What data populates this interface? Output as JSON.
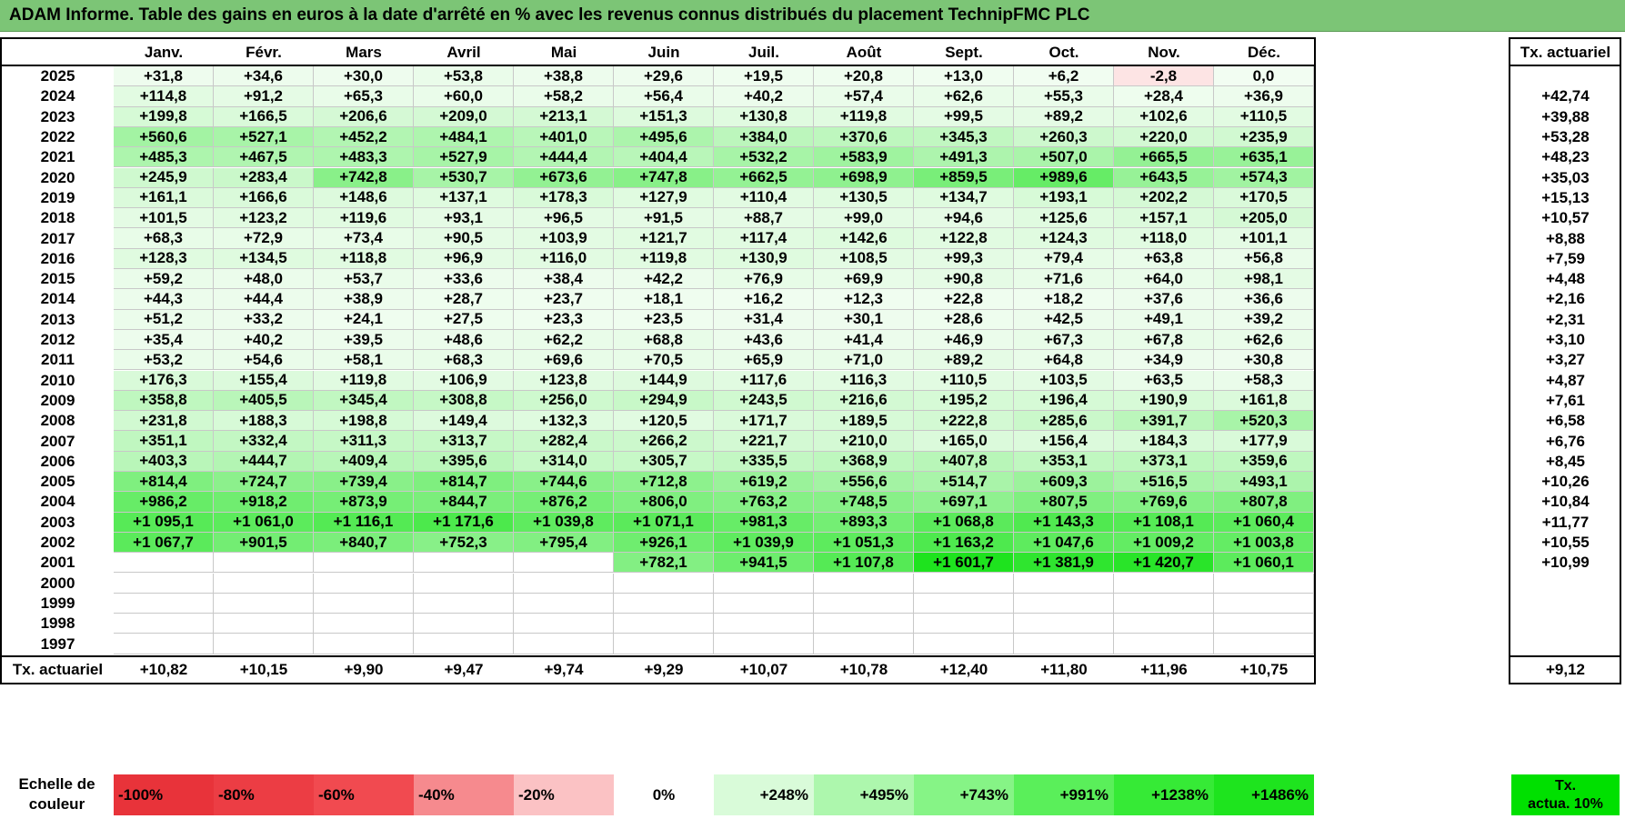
{
  "title": "ADAM Informe. Table des gains en euros à la date d'arrêté en % avec les revenus connus distribués du placement TechnipFMC PLC",
  "months": [
    "Janv.",
    "Févr.",
    "Mars",
    "Avril",
    "Mai",
    "Juin",
    "Juil.",
    "Août",
    "Sept.",
    "Oct.",
    "Nov.",
    "Déc."
  ],
  "annual_header": "Tx. actuariel",
  "rows": [
    {
      "year": "2025",
      "cells": [
        "+31,8",
        "+34,6",
        "+30,0",
        "+53,8",
        "+38,8",
        "+29,6",
        "+19,5",
        "+20,8",
        "+13,0",
        "+6,2",
        "-2,8",
        "0,0"
      ],
      "annual": ""
    },
    {
      "year": "2024",
      "cells": [
        "+114,8",
        "+91,2",
        "+65,3",
        "+60,0",
        "+58,2",
        "+56,4",
        "+40,2",
        "+57,4",
        "+62,6",
        "+55,3",
        "+28,4",
        "+36,9"
      ],
      "annual": "+42,74"
    },
    {
      "year": "2023",
      "cells": [
        "+199,8",
        "+166,5",
        "+206,6",
        "+209,0",
        "+213,1",
        "+151,3",
        "+130,8",
        "+119,8",
        "+99,5",
        "+89,2",
        "+102,6",
        "+110,5"
      ],
      "annual": "+39,88"
    },
    {
      "year": "2022",
      "cells": [
        "+560,6",
        "+527,1",
        "+452,2",
        "+484,1",
        "+401,0",
        "+495,6",
        "+384,0",
        "+370,6",
        "+345,3",
        "+260,3",
        "+220,0",
        "+235,9"
      ],
      "annual": "+53,28"
    },
    {
      "year": "2021",
      "cells": [
        "+485,3",
        "+467,5",
        "+483,3",
        "+527,9",
        "+444,4",
        "+404,4",
        "+532,2",
        "+583,9",
        "+491,3",
        "+507,0",
        "+665,5",
        "+635,1"
      ],
      "annual": "+48,23"
    },
    {
      "year": "2020",
      "cells": [
        "+245,9",
        "+283,4",
        "+742,8",
        "+530,7",
        "+673,6",
        "+747,8",
        "+662,5",
        "+698,9",
        "+859,5",
        "+989,6",
        "+643,5",
        "+574,3"
      ],
      "annual": "+35,03"
    },
    {
      "year": "2019",
      "cells": [
        "+161,1",
        "+166,6",
        "+148,6",
        "+137,1",
        "+178,3",
        "+127,9",
        "+110,4",
        "+130,5",
        "+134,7",
        "+193,1",
        "+202,2",
        "+170,5"
      ],
      "annual": "+15,13"
    },
    {
      "year": "2018",
      "cells": [
        "+101,5",
        "+123,2",
        "+119,6",
        "+93,1",
        "+96,5",
        "+91,5",
        "+88,7",
        "+99,0",
        "+94,6",
        "+125,6",
        "+157,1",
        "+205,0"
      ],
      "annual": "+10,57"
    },
    {
      "year": "2017",
      "cells": [
        "+68,3",
        "+72,9",
        "+73,4",
        "+90,5",
        "+103,9",
        "+121,7",
        "+117,4",
        "+142,6",
        "+122,8",
        "+124,3",
        "+118,0",
        "+101,1"
      ],
      "annual": "+8,88"
    },
    {
      "year": "2016",
      "cells": [
        "+128,3",
        "+134,5",
        "+118,8",
        "+96,9",
        "+116,0",
        "+119,8",
        "+130,9",
        "+108,5",
        "+99,3",
        "+79,4",
        "+63,8",
        "+56,8"
      ],
      "annual": "+7,59"
    },
    {
      "year": "2015",
      "cells": [
        "+59,2",
        "+48,0",
        "+53,7",
        "+33,6",
        "+38,4",
        "+42,2",
        "+76,9",
        "+69,9",
        "+90,8",
        "+71,6",
        "+64,0",
        "+98,1"
      ],
      "annual": "+4,48"
    },
    {
      "year": "2014",
      "cells": [
        "+44,3",
        "+44,4",
        "+38,9",
        "+28,7",
        "+23,7",
        "+18,1",
        "+16,2",
        "+12,3",
        "+22,8",
        "+18,2",
        "+37,6",
        "+36,6"
      ],
      "annual": "+2,16"
    },
    {
      "year": "2013",
      "cells": [
        "+51,2",
        "+33,2",
        "+24,1",
        "+27,5",
        "+23,3",
        "+23,5",
        "+31,4",
        "+30,1",
        "+28,6",
        "+42,5",
        "+49,1",
        "+39,2"
      ],
      "annual": "+2,31"
    },
    {
      "year": "2012",
      "cells": [
        "+35,4",
        "+40,2",
        "+39,5",
        "+48,6",
        "+62,2",
        "+68,8",
        "+43,6",
        "+41,4",
        "+46,9",
        "+67,3",
        "+67,8",
        "+62,6"
      ],
      "annual": "+3,10"
    },
    {
      "year": "2011",
      "cells": [
        "+53,2",
        "+54,6",
        "+58,1",
        "+68,3",
        "+69,6",
        "+70,5",
        "+65,9",
        "+71,0",
        "+89,2",
        "+64,8",
        "+34,9",
        "+30,8"
      ],
      "annual": "+3,27"
    },
    {
      "year": "2010",
      "cells": [
        "+176,3",
        "+155,4",
        "+119,8",
        "+106,9",
        "+123,8",
        "+144,9",
        "+117,6",
        "+116,3",
        "+110,5",
        "+103,5",
        "+63,5",
        "+58,3"
      ],
      "annual": "+4,87"
    },
    {
      "year": "2009",
      "cells": [
        "+358,8",
        "+405,5",
        "+345,4",
        "+308,8",
        "+256,0",
        "+294,9",
        "+243,5",
        "+216,6",
        "+195,2",
        "+196,4",
        "+190,9",
        "+161,8"
      ],
      "annual": "+7,61"
    },
    {
      "year": "2008",
      "cells": [
        "+231,8",
        "+188,3",
        "+198,8",
        "+149,4",
        "+132,3",
        "+120,5",
        "+171,7",
        "+189,5",
        "+222,8",
        "+285,6",
        "+391,7",
        "+520,3"
      ],
      "annual": "+6,58"
    },
    {
      "year": "2007",
      "cells": [
        "+351,1",
        "+332,4",
        "+311,3",
        "+313,7",
        "+282,4",
        "+266,2",
        "+221,7",
        "+210,0",
        "+165,0",
        "+156,4",
        "+184,3",
        "+177,9"
      ],
      "annual": "+6,76"
    },
    {
      "year": "2006",
      "cells": [
        "+403,3",
        "+444,7",
        "+409,4",
        "+395,6",
        "+314,0",
        "+305,7",
        "+335,5",
        "+368,9",
        "+407,8",
        "+353,1",
        "+373,1",
        "+359,6"
      ],
      "annual": "+8,45"
    },
    {
      "year": "2005",
      "cells": [
        "+814,4",
        "+724,7",
        "+739,4",
        "+814,7",
        "+744,6",
        "+712,8",
        "+619,2",
        "+556,6",
        "+514,7",
        "+609,3",
        "+516,5",
        "+493,1"
      ],
      "annual": "+10,26"
    },
    {
      "year": "2004",
      "cells": [
        "+986,2",
        "+918,2",
        "+873,9",
        "+844,7",
        "+876,2",
        "+806,0",
        "+763,2",
        "+748,5",
        "+697,1",
        "+807,5",
        "+769,6",
        "+807,8"
      ],
      "annual": "+10,84"
    },
    {
      "year": "2003",
      "cells": [
        "+1 095,1",
        "+1 061,0",
        "+1 116,1",
        "+1 171,6",
        "+1 039,8",
        "+1 071,1",
        "+981,3",
        "+893,3",
        "+1 068,8",
        "+1 143,3",
        "+1 108,1",
        "+1 060,4"
      ],
      "annual": "+11,77"
    },
    {
      "year": "2002",
      "cells": [
        "+1 067,7",
        "+901,5",
        "+840,7",
        "+752,3",
        "+795,4",
        "+926,1",
        "+1 039,9",
        "+1 051,3",
        "+1 163,2",
        "+1 047,6",
        "+1 009,2",
        "+1 003,8"
      ],
      "annual": "+10,55"
    },
    {
      "year": "2001",
      "cells": [
        "",
        "",
        "",
        "",
        "",
        "+782,1",
        "+941,5",
        "+1 107,8",
        "+1 601,7",
        "+1 381,9",
        "+1 420,7",
        "+1 060,1"
      ],
      "annual": "+10,99"
    },
    {
      "year": "2000",
      "cells": [
        "",
        "",
        "",
        "",
        "",
        "",
        "",
        "",
        "",
        "",
        "",
        ""
      ],
      "annual": ""
    },
    {
      "year": "1999",
      "cells": [
        "",
        "",
        "",
        "",
        "",
        "",
        "",
        "",
        "",
        "",
        "",
        ""
      ],
      "annual": ""
    },
    {
      "year": "1998",
      "cells": [
        "",
        "",
        "",
        "",
        "",
        "",
        "",
        "",
        "",
        "",
        "",
        ""
      ],
      "annual": ""
    },
    {
      "year": "1997",
      "cells": [
        "",
        "",
        "",
        "",
        "",
        "",
        "",
        "",
        "",
        "",
        "",
        ""
      ],
      "annual": ""
    }
  ],
  "footer": {
    "label": "Tx. actuariel",
    "cells": [
      "+10,82",
      "+10,15",
      "+9,90",
      "+9,47",
      "+9,74",
      "+9,29",
      "+10,07",
      "+10,78",
      "+12,40",
      "+11,80",
      "+11,96",
      "+10,75"
    ],
    "annual": "+9,12"
  },
  "legend": {
    "label_line1": "Echelle de",
    "label_line2": "couleur",
    "items": [
      {
        "text": "-100%",
        "color": "#e8333a"
      },
      {
        "text": "-80%",
        "color": "#ec3d44"
      },
      {
        "text": "-60%",
        "color": "#f14a50"
      },
      {
        "text": "-40%",
        "color": "#f68a8e"
      },
      {
        "text": "-20%",
        "color": "#fbc2c4"
      },
      {
        "text": "0%",
        "color": "#ffffff"
      },
      {
        "text": "+248%",
        "color": "#d9fbd9"
      },
      {
        "text": "+495%",
        "color": "#adf7ad"
      },
      {
        "text": "+743%",
        "color": "#86f486"
      },
      {
        "text": "+991%",
        "color": "#5aef5a"
      },
      {
        "text": "+1238%",
        "color": "#36ea36"
      },
      {
        "text": "+1486%",
        "color": "#1ee41e"
      }
    ],
    "annual_line1": "Tx.",
    "annual_line2": "actua. 10%"
  },
  "colors": {
    "title_bg": "#7cc576",
    "negative_cell": "#fde4e4",
    "scale_max_green": "#22e022"
  }
}
